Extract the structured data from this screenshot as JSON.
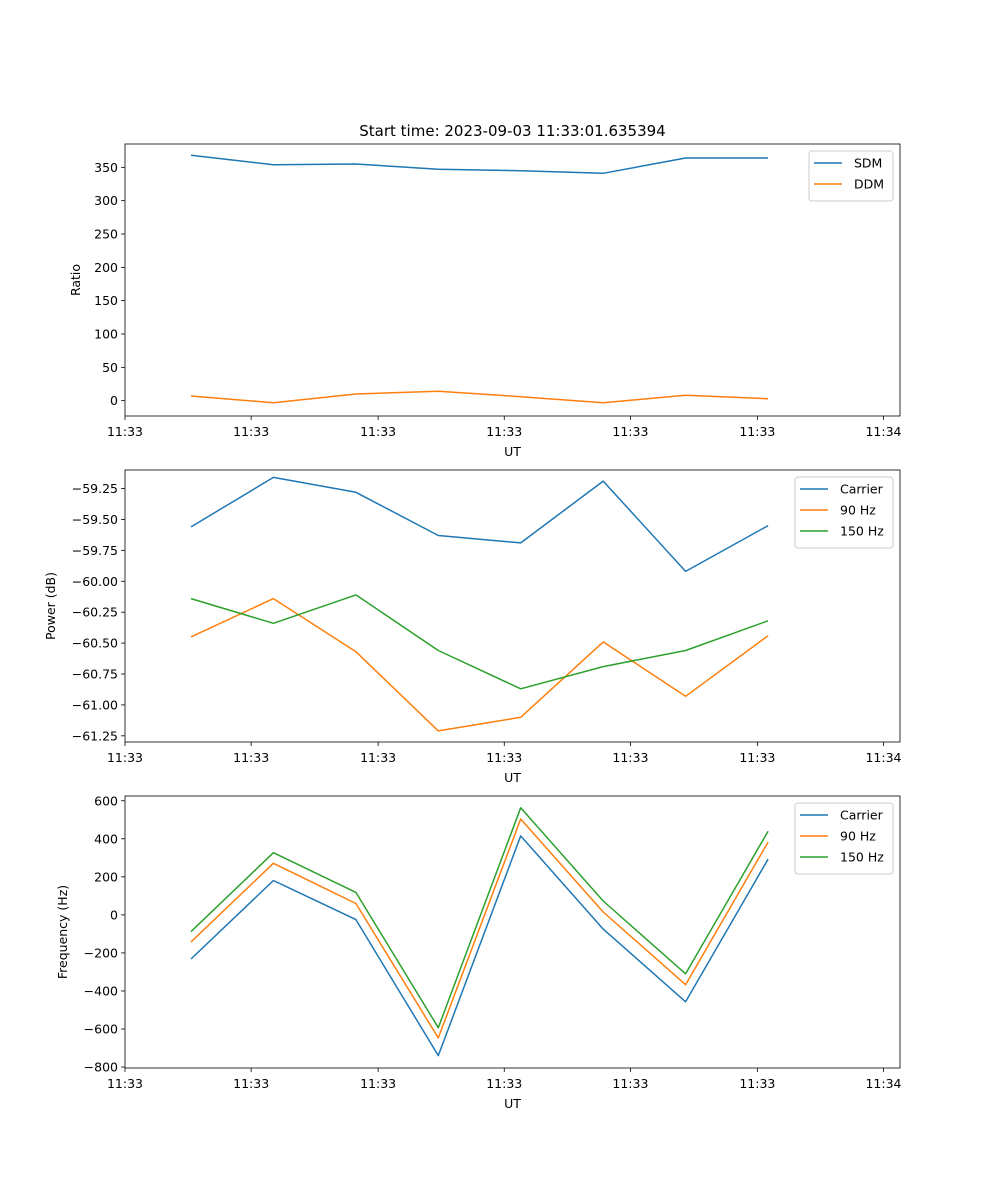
{
  "title": "Start time: 2023-09-03 11:33:01.635394",
  "chart_data": [
    {
      "type": "line",
      "title": "Start time: 2023-09-03 11:33:01.635394",
      "xlabel": "UT",
      "ylabel": "Ratio",
      "x": [
        1,
        2,
        3,
        4,
        5,
        6,
        7,
        8
      ],
      "xlim": [
        0.2,
        9.6
      ],
      "xtick_positions": [
        0.2,
        1.73,
        3.27,
        4.8,
        6.33,
        7.87,
        9.4
      ],
      "xtick_labels": [
        "11:33",
        "11:33",
        "11:33",
        "11:33",
        "11:33",
        "11:33",
        "11:34"
      ],
      "ylim": [
        -23,
        385
      ],
      "yticks": [
        0,
        50,
        100,
        150,
        200,
        250,
        300,
        350
      ],
      "ytick_labels": [
        "0",
        "50",
        "100",
        "150",
        "200",
        "250",
        "300",
        "350"
      ],
      "legend": "top-right",
      "series": [
        {
          "name": "SDM",
          "color": "#1f77b4",
          "values": [
            368,
            354,
            355,
            347,
            345,
            341,
            364,
            364
          ]
        },
        {
          "name": "DDM",
          "color": "#ff7f0e",
          "values": [
            7,
            -3,
            10,
            14,
            6,
            -3,
            8,
            3
          ]
        }
      ]
    },
    {
      "type": "line",
      "xlabel": "UT",
      "ylabel": "Power (dB)",
      "x": [
        1,
        2,
        3,
        4,
        5,
        6,
        7,
        8
      ],
      "xlim": [
        0.2,
        9.6
      ],
      "xtick_positions": [
        0.2,
        1.73,
        3.27,
        4.8,
        6.33,
        7.87,
        9.4
      ],
      "xtick_labels": [
        "11:33",
        "11:33",
        "11:33",
        "11:33",
        "11:33",
        "11:33",
        "11:34"
      ],
      "ylim": [
        -61.3,
        -59.1
      ],
      "yticks": [
        -61.25,
        -61.0,
        -60.75,
        -60.5,
        -60.25,
        -60.0,
        -59.75,
        -59.5,
        -59.25
      ],
      "ytick_labels": [
        "−61.25",
        "−61.00",
        "−60.75",
        "−60.50",
        "−60.25",
        "−60.00",
        "−59.75",
        "−59.50",
        "−59.25"
      ],
      "legend": "top-right",
      "series": [
        {
          "name": "Carrier",
          "color": "#1f77b4",
          "values": [
            -59.56,
            -59.16,
            -59.28,
            -59.63,
            -59.69,
            -59.19,
            -59.92,
            -59.55
          ]
        },
        {
          "name": "90 Hz",
          "color": "#ff7f0e",
          "values": [
            -60.45,
            -60.14,
            -60.57,
            -61.21,
            -61.1,
            -60.49,
            -60.93,
            -60.44
          ]
        },
        {
          "name": "150 Hz",
          "color": "#2ca02c",
          "values": [
            -60.14,
            -60.34,
            -60.11,
            -60.56,
            -60.87,
            -60.69,
            -60.56,
            -60.32
          ]
        }
      ]
    },
    {
      "type": "line",
      "xlabel": "UT",
      "ylabel": "Frequency (Hz)",
      "x": [
        1,
        2,
        3,
        4,
        5,
        6,
        7,
        8
      ],
      "xlim": [
        0.2,
        9.6
      ],
      "xtick_positions": [
        0.2,
        1.73,
        3.27,
        4.8,
        6.33,
        7.87,
        9.4
      ],
      "xtick_labels": [
        "11:33",
        "11:33",
        "11:33",
        "11:33",
        "11:33",
        "11:33",
        "11:34"
      ],
      "ylim": [
        -805,
        625
      ],
      "yticks": [
        -800,
        -600,
        -400,
        -200,
        0,
        200,
        400,
        600
      ],
      "ytick_labels": [
        "−800",
        "−600",
        "−400",
        "−200",
        "0",
        "200",
        "400",
        "600"
      ],
      "legend": "top-right",
      "series": [
        {
          "name": "Carrier",
          "color": "#1f77b4",
          "values": [
            -232,
            181,
            -25,
            -740,
            415,
            -75,
            -457,
            293
          ]
        },
        {
          "name": "90 Hz",
          "color": "#ff7f0e",
          "values": [
            -142,
            271,
            60,
            -647,
            504,
            15,
            -367,
            383
          ]
        },
        {
          "name": "150 Hz",
          "color": "#2ca02c",
          "values": [
            -88,
            327,
            118,
            -593,
            563,
            73,
            -310,
            440
          ]
        }
      ]
    }
  ]
}
